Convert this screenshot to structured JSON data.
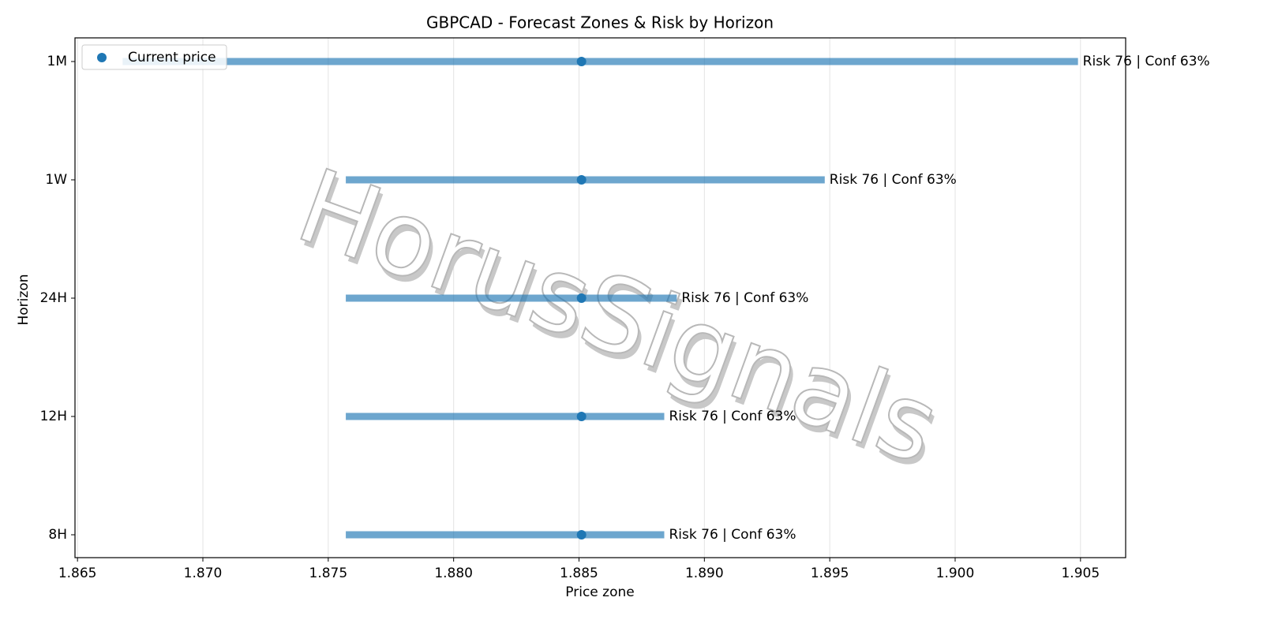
{
  "chart_data": {
    "type": "range",
    "title": "GBPCAD - Forecast Zones & Risk by Horizon",
    "xlabel": "Price zone",
    "ylabel": "Horizon",
    "categories": [
      "1M",
      "1W",
      "24H",
      "12H",
      "8H"
    ],
    "low": [
      1.8668,
      1.8757,
      1.8757,
      1.8757,
      1.8757
    ],
    "high": [
      1.9049,
      1.8948,
      1.8889,
      1.8884,
      1.8884
    ],
    "bar_color": "#1f77b4",
    "current": {
      "name": "Current price",
      "color": "#1f77b4",
      "values": [
        1.8851,
        1.8851,
        1.8851,
        1.8851,
        1.8851
      ]
    },
    "annotations": [
      "Risk 76 | Conf 63%",
      "Risk 76 | Conf 63%",
      "Risk 76 | Conf 63%",
      "Risk 76 | Conf 63%",
      "Risk 76 | Conf 63%"
    ],
    "xlim": [
      1.8649,
      1.9068
    ],
    "xticks": [
      1.865,
      {
        "value": 1.87,
        "label": "1.870"
      },
      1.875,
      {
        "value": 1.88,
        "label": "1.880"
      },
      1.885,
      {
        "value": 1.89,
        "label": "1.890"
      },
      1.895,
      {
        "value": 1.9,
        "label": "1.900"
      },
      1.905
    ],
    "grid": true,
    "legend": "upper left",
    "watermark": "HorusSignals"
  }
}
